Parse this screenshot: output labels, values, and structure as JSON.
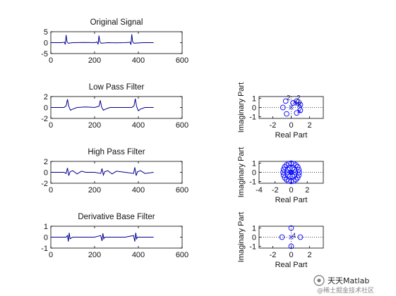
{
  "watermark": {
    "title": "天天Matlab",
    "subtitle": "@稀土掘金技术社区"
  },
  "chart_data": [
    {
      "type": "line",
      "title": "Original Signal",
      "xlim": [
        0,
        600
      ],
      "ylim": [
        -5,
        5
      ],
      "x_ticks": [
        "0",
        "200",
        "400",
        "600"
      ],
      "y_ticks": [
        "5",
        "0",
        "-5"
      ],
      "color": "#00008b",
      "series": [
        {
          "x": [
            0,
            50,
            62,
            66,
            70,
            74,
            80,
            100,
            150,
            200,
            212,
            216,
            220,
            224,
            230,
            260,
            300,
            340,
            362,
            366,
            370,
            374,
            380,
            420,
            470
          ],
          "values": [
            0,
            0,
            0.2,
            -0.8,
            3.5,
            0.4,
            -0.3,
            0,
            0.1,
            0,
            0.3,
            -0.8,
            3.2,
            0.5,
            -0.3,
            0,
            -0.1,
            0,
            0.2,
            -0.9,
            3.8,
            0.4,
            -0.3,
            0,
            0
          ]
        }
      ]
    },
    {
      "type": "line",
      "title": "Low Pass Filter",
      "xlim": [
        0,
        600
      ],
      "ylim": [
        -2,
        2
      ],
      "x_ticks": [
        "0",
        "200",
        "400",
        "600"
      ],
      "y_ticks": [
        "2",
        "0",
        "-2"
      ],
      "color": "#00008b",
      "series": [
        {
          "x": [
            0,
            60,
            70,
            76,
            82,
            90,
            100,
            120,
            160,
            200,
            220,
            226,
            232,
            240,
            250,
            270,
            320,
            370,
            380,
            386,
            392,
            400,
            410,
            430,
            470
          ],
          "values": [
            0,
            0,
            0.3,
            1.5,
            0.2,
            -0.5,
            -0.3,
            0,
            0.1,
            0,
            0.2,
            1.3,
            0.1,
            -0.5,
            -0.3,
            0,
            0,
            0,
            0.3,
            1.6,
            0.2,
            -0.6,
            -0.3,
            0,
            0
          ]
        }
      ]
    },
    {
      "type": "line",
      "title": "High Pass Filter",
      "xlim": [
        0,
        600
      ],
      "ylim": [
        -2,
        2
      ],
      "x_ticks": [
        "0",
        "200",
        "400",
        "600"
      ],
      "y_ticks": [
        "2",
        "0",
        "-2"
      ],
      "color": "#00008b",
      "series": [
        {
          "x": [
            0,
            60,
            70,
            76,
            82,
            88,
            100,
            120,
            140,
            160,
            200,
            228,
            234,
            240,
            246,
            260,
            280,
            300,
            340,
            378,
            384,
            390,
            396,
            410,
            430,
            470
          ],
          "values": [
            0,
            0,
            -0.2,
            0.8,
            -0.6,
            0.1,
            0.3,
            -0.3,
            0.2,
            0,
            0,
            -0.2,
            0.7,
            -0.5,
            0.1,
            0.3,
            -0.3,
            0.2,
            0,
            -0.2,
            0.9,
            -0.6,
            0.1,
            0.3,
            -0.2,
            0
          ]
        }
      ]
    },
    {
      "type": "line",
      "title": "Derivative Base Filter",
      "xlim": [
        0,
        600
      ],
      "ylim": [
        -1,
        1
      ],
      "x_ticks": [
        "0",
        "200",
        "400",
        "600"
      ],
      "y_ticks": [
        "1",
        "0",
        "-1"
      ],
      "color": "#00008b",
      "series": [
        {
          "x": [
            0,
            70,
            76,
            80,
            84,
            88,
            100,
            200,
            228,
            234,
            238,
            242,
            246,
            260,
            340,
            378,
            384,
            388,
            392,
            396,
            410,
            470
          ],
          "values": [
            0,
            0,
            0.15,
            -0.4,
            0.4,
            -0.15,
            0,
            0,
            0.15,
            -0.35,
            0.35,
            -0.15,
            0,
            0,
            0,
            0.15,
            -0.4,
            0.4,
            -0.15,
            0,
            0,
            0
          ]
        }
      ]
    },
    {
      "type": "scatter",
      "title": "",
      "xlabel": "Real Part",
      "ylabel": "Imaginary Part",
      "xlim": [
        -3.5,
        3.5
      ],
      "ylim": [
        -1.2,
        1.2
      ],
      "x_ticks": [
        "-2",
        "0",
        "2"
      ],
      "y_ticks": [
        "1",
        "0",
        "-1"
      ],
      "grid": "dotted axes",
      "color": "#0000ff",
      "zeros": [
        {
          "x": -0.6,
          "y": 0.7
        },
        {
          "x": 0.6,
          "y": 0.7
        },
        {
          "x": -0.9,
          "y": 0
        },
        {
          "x": 0.2,
          "y": 0.5
        },
        {
          "x": 0.6,
          "y": -0.6
        },
        {
          "x": -0.5,
          "y": -0.7
        },
        {
          "x": 1.0,
          "y": 0.3
        },
        {
          "x": 1.0,
          "y": -0.3
        }
      ],
      "poles": [
        {
          "x": 0,
          "y": 0
        },
        {
          "x": 0.7,
          "y": 0.5
        },
        {
          "x": 0.9,
          "y": 0.3
        },
        {
          "x": 0.4,
          "y": 0.6
        },
        {
          "x": 0.9,
          "y": -0.4
        }
      ],
      "multiplicity_labels": [
        {
          "x": -0.3,
          "y": 1.12,
          "text": "2"
        },
        {
          "x": 0.8,
          "y": 1.12,
          "text": "2"
        },
        {
          "x": 0.75,
          "y": 0.55,
          "text": "12"
        }
      ]
    },
    {
      "type": "scatter",
      "title": "",
      "xlabel": "Real Part",
      "ylabel": "Imaginary Part",
      "xlim": [
        -4,
        4
      ],
      "ylim": [
        -1.2,
        1.2
      ],
      "x_ticks": [
        "-4",
        "-2",
        "0",
        "2"
      ],
      "y_ticks": [
        "1",
        "0",
        "-1"
      ],
      "grid": "dotted axes",
      "color": "#0000ff",
      "zeros": [
        {
          "x": 1.0,
          "y": 0
        },
        {
          "x": 0.95,
          "y": 0.3
        },
        {
          "x": 0.81,
          "y": 0.59
        },
        {
          "x": 0.59,
          "y": 0.81
        },
        {
          "x": 0.31,
          "y": 0.95
        },
        {
          "x": 0,
          "y": 1.0
        },
        {
          "x": -0.31,
          "y": 0.95
        },
        {
          "x": -0.59,
          "y": 0.81
        },
        {
          "x": -0.81,
          "y": 0.59
        },
        {
          "x": -0.95,
          "y": 0.31
        },
        {
          "x": -1.0,
          "y": 0
        },
        {
          "x": -0.95,
          "y": -0.31
        },
        {
          "x": -0.81,
          "y": -0.59
        },
        {
          "x": -0.59,
          "y": -0.81
        },
        {
          "x": -0.31,
          "y": -0.95
        },
        {
          "x": 0,
          "y": -1.0
        },
        {
          "x": 0.31,
          "y": -0.95
        },
        {
          "x": 0.59,
          "y": -0.81
        },
        {
          "x": 0.81,
          "y": -0.59
        },
        {
          "x": 0.95,
          "y": -0.31
        },
        {
          "x": 0.5,
          "y": 0
        },
        {
          "x": 0.4,
          "y": 0.3
        },
        {
          "x": 0.15,
          "y": 0.45
        },
        {
          "x": -0.15,
          "y": 0.45
        },
        {
          "x": -0.4,
          "y": 0.3
        },
        {
          "x": -0.5,
          "y": 0
        },
        {
          "x": -0.4,
          "y": -0.3
        },
        {
          "x": -0.15,
          "y": -0.45
        },
        {
          "x": 0.15,
          "y": -0.45
        },
        {
          "x": 0.4,
          "y": -0.3
        }
      ],
      "poles": [
        {
          "x": 0,
          "y": 0
        },
        {
          "x": 0.1,
          "y": 0.05
        },
        {
          "x": -0.1,
          "y": -0.05
        }
      ],
      "multiplicity_labels": []
    },
    {
      "type": "scatter",
      "title": "",
      "xlabel": "Real Part",
      "ylabel": "Imaginary Part",
      "xlim": [
        -3.5,
        3.5
      ],
      "ylim": [
        -1.2,
        1.2
      ],
      "x_ticks": [
        "-2",
        "0",
        "2"
      ],
      "y_ticks": [
        "1",
        "0",
        "-1"
      ],
      "grid": "dotted axes",
      "color": "#0000ff",
      "zeros": [
        {
          "x": -1.0,
          "y": 0
        },
        {
          "x": 1.0,
          "y": 0
        },
        {
          "x": 0,
          "y": 1.0
        },
        {
          "x": 0,
          "y": -1.0
        }
      ],
      "poles": [
        {
          "x": 0,
          "y": 0
        }
      ],
      "multiplicity_labels": [
        {
          "x": 0.3,
          "y": 0.25,
          "text": "4"
        }
      ]
    }
  ]
}
